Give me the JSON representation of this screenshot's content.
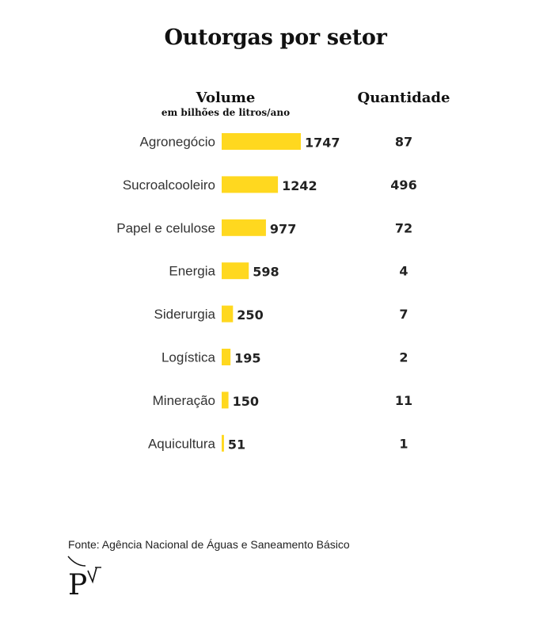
{
  "colors": {
    "bar": "#FFD81F",
    "text": "#222222"
  },
  "chart_data": {
    "type": "bar",
    "orientation": "horizontal",
    "title": "Outorgas por setor",
    "value_header": "Volume",
    "value_subheader": "em bilhões de litros/ano",
    "quantity_header": "Quantidade",
    "categories": [
      "Agronegócio",
      "Sucroalcooleiro",
      "Papel e celulose",
      "Energia",
      "Siderurgia",
      "Logística",
      "Mineração",
      "Aquicultura"
    ],
    "series": [
      {
        "name": "Volume",
        "values": [
          1747,
          1242,
          977,
          598,
          250,
          195,
          150,
          51
        ]
      },
      {
        "name": "Quantidade",
        "values": [
          87,
          496,
          72,
          4,
          7,
          2,
          11,
          1
        ]
      }
    ],
    "xlim": [
      0,
      1747
    ]
  },
  "footer": {
    "source": "Fonte: Agência Nacional de Águas e Saneamento Básico",
    "logo_icon": "pv-logo-icon"
  }
}
